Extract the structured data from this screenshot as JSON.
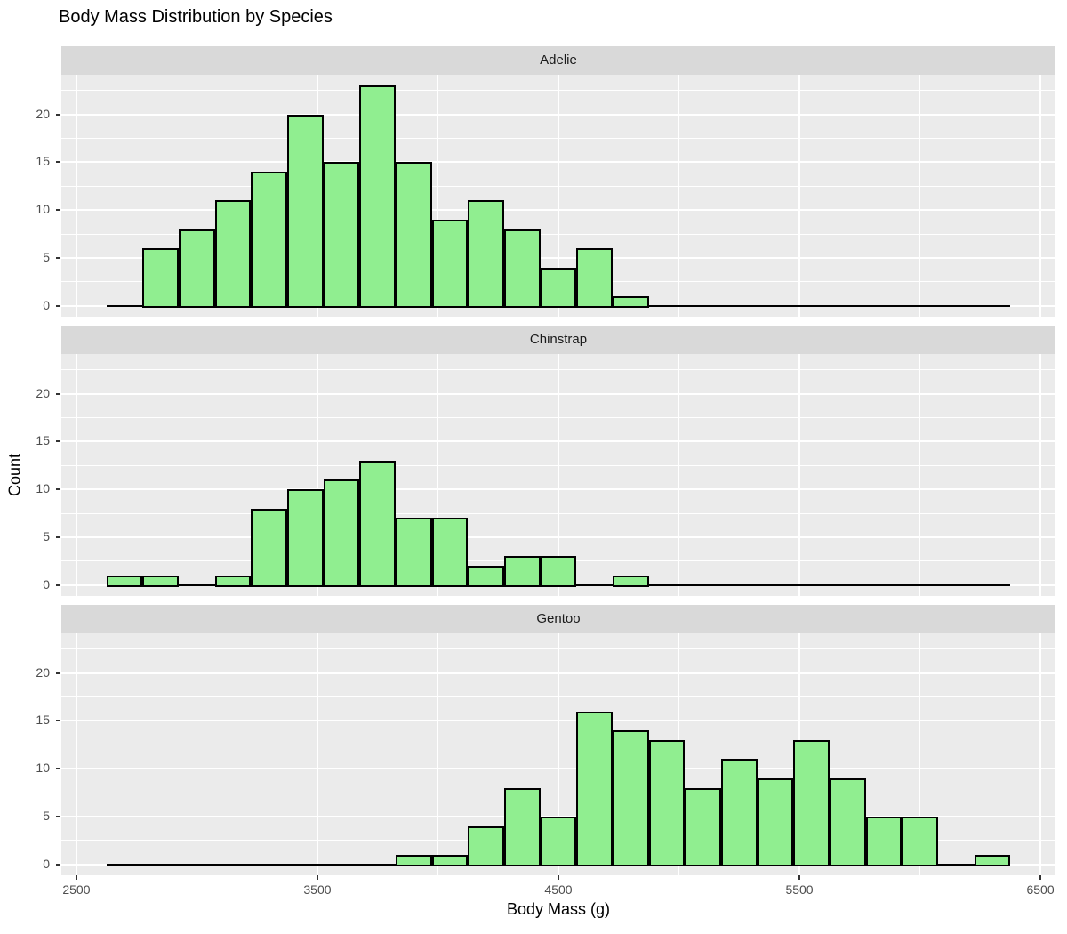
{
  "title": "Body Mass Distribution by Species",
  "chart_data": {
    "type": "bar",
    "subtype": "faceted-histogram",
    "title": "Body Mass Distribution by Species",
    "xlabel": "Body Mass (g)",
    "ylabel": "Count",
    "xlim": [
      2437.5,
      6562.5
    ],
    "ylim": [
      -1.15,
      24.15
    ],
    "x_major_ticks": [
      2500,
      3500,
      4500,
      5500,
      6500
    ],
    "x_minor_gridlines": [
      3000,
      4000,
      5000,
      6000
    ],
    "y_major_ticks": [
      0,
      5,
      10,
      15,
      20
    ],
    "y_minor_gridlines": [
      2.5,
      7.5,
      12.5,
      17.5,
      22.5
    ],
    "binwidth": 150,
    "baseline_range": [
      2625,
      6375
    ],
    "grid": true,
    "legend": "none",
    "facets": [
      {
        "label": "Adelie",
        "bin_start": 2775,
        "counts": [
          6,
          8,
          11,
          14,
          20,
          15,
          23,
          15,
          9,
          11,
          8,
          4,
          6,
          1
        ]
      },
      {
        "label": "Chinstrap",
        "bin_start": 2625,
        "counts": [
          1,
          1,
          0,
          1,
          8,
          10,
          11,
          13,
          7,
          7,
          2,
          3,
          3,
          0,
          1
        ]
      },
      {
        "label": "Gentoo",
        "bin_start": 3825,
        "counts": [
          1,
          1,
          4,
          8,
          5,
          16,
          14,
          13,
          8,
          11,
          9,
          13,
          9,
          5,
          5,
          0,
          1
        ]
      }
    ],
    "colors": {
      "bar_fill": "#90EE90",
      "bar_stroke": "#000000",
      "panel_background": "#EBEBEB",
      "strip_background": "#D9D9D9",
      "gridline": "#FFFFFF",
      "tick_mark": "#333333",
      "tick_label": "#4D4D4D",
      "title_text": "#000000"
    }
  }
}
